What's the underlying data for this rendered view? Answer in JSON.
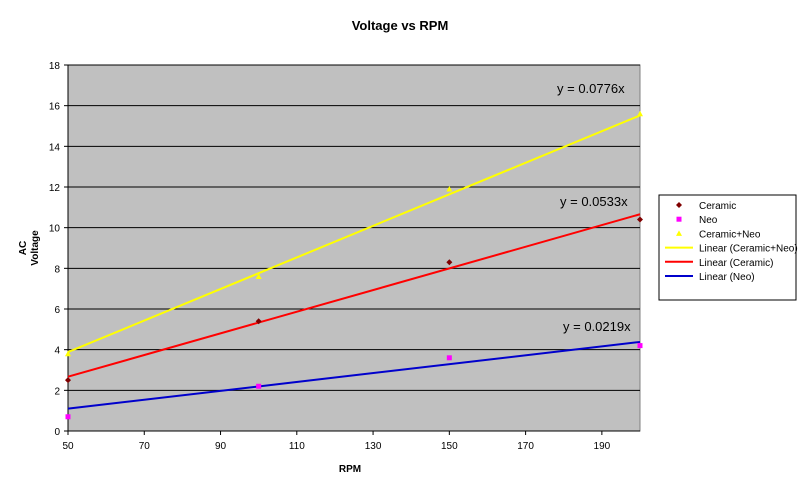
{
  "chart_data": {
    "type": "scatter",
    "title": "Voltage vs RPM",
    "xlabel": "RPM",
    "ylabel_lines": [
      "AC",
      "Voltage"
    ],
    "xlim": [
      50,
      200
    ],
    "ylim": [
      0,
      18
    ],
    "x_ticks": [
      50,
      70,
      90,
      110,
      130,
      150,
      170,
      190
    ],
    "y_ticks": [
      0,
      2,
      4,
      6,
      8,
      10,
      12,
      14,
      16,
      18
    ],
    "grid": "horizontal",
    "plot_background": "#c0c0c0",
    "legend_position": "right",
    "series": [
      {
        "name": "Ceramic",
        "marker": "diamond",
        "color": "#800000",
        "points": [
          [
            50,
            2.5
          ],
          [
            100,
            5.4
          ],
          [
            150,
            8.3
          ],
          [
            200,
            10.4
          ]
        ]
      },
      {
        "name": "Neo",
        "marker": "square",
        "color": "#ff00ff",
        "points": [
          [
            50,
            0.7
          ],
          [
            100,
            2.2
          ],
          [
            150,
            3.6
          ],
          [
            200,
            4.2
          ]
        ]
      },
      {
        "name": "Ceramic+Neo",
        "marker": "triangle",
        "color": "#ffff00",
        "points": [
          [
            50,
            3.8
          ],
          [
            100,
            7.6
          ],
          [
            150,
            11.9
          ],
          [
            200,
            15.6
          ]
        ]
      }
    ],
    "trendlines": [
      {
        "name": "Linear (Ceramic+Neo)",
        "color": "#ffff00",
        "from": [
          50,
          3.88
        ],
        "to": [
          200,
          15.52
        ],
        "equation": "y = 0.0776x"
      },
      {
        "name": "Linear (Ceramic)",
        "color": "#ff0000",
        "from": [
          50,
          2.67
        ],
        "to": [
          200,
          10.66
        ],
        "equation": "y = 0.0533x"
      },
      {
        "name": "Linear (Neo)",
        "color": "#0000cc",
        "from": [
          50,
          1.1
        ],
        "to": [
          200,
          4.38
        ],
        "equation": "y = 0.0219x"
      }
    ]
  }
}
